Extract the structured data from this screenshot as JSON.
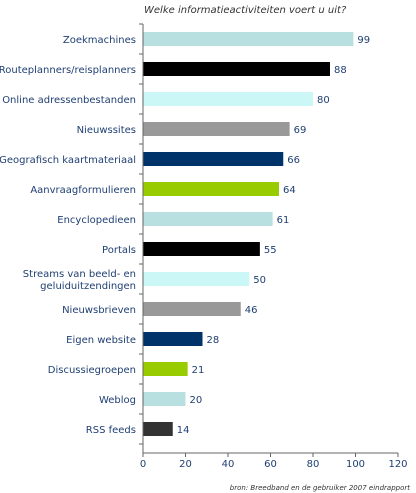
{
  "chart_data": {
    "type": "bar",
    "orientation": "horizontal",
    "title": "Welke informatieactiviteiten voert u uit?",
    "categories": [
      "Zoekmachines",
      "Routeplanners/reisplanners",
      "Online adressenbestanden",
      "Nieuwssites",
      "Geografisch kaartmateriaal",
      "Aanvraagformulieren",
      "Encyclopedieen",
      "Portals",
      "Streams van beeld- en geluiduitzendingen",
      "Nieuwsbrieven",
      "Eigen website",
      "Discussiegroepen",
      "Weblog",
      "RSS feeds"
    ],
    "values": [
      99,
      88,
      80,
      69,
      66,
      64,
      61,
      55,
      50,
      46,
      28,
      21,
      20,
      14
    ],
    "colors": [
      "#b8e0e0",
      "#000000",
      "#ccf7f7",
      "#999999",
      "#00336a",
      "#99cc00",
      "#b8e0e0",
      "#000000",
      "#ccf7f7",
      "#999999",
      "#00336a",
      "#99cc00",
      "#b8e0e0",
      "#333333"
    ],
    "xlim": [
      0,
      120
    ],
    "xticks": [
      0,
      20,
      40,
      60,
      80,
      100,
      120
    ],
    "grid": false,
    "source": "bron: Breedband en de gebruiker 2007 eindrapport"
  }
}
